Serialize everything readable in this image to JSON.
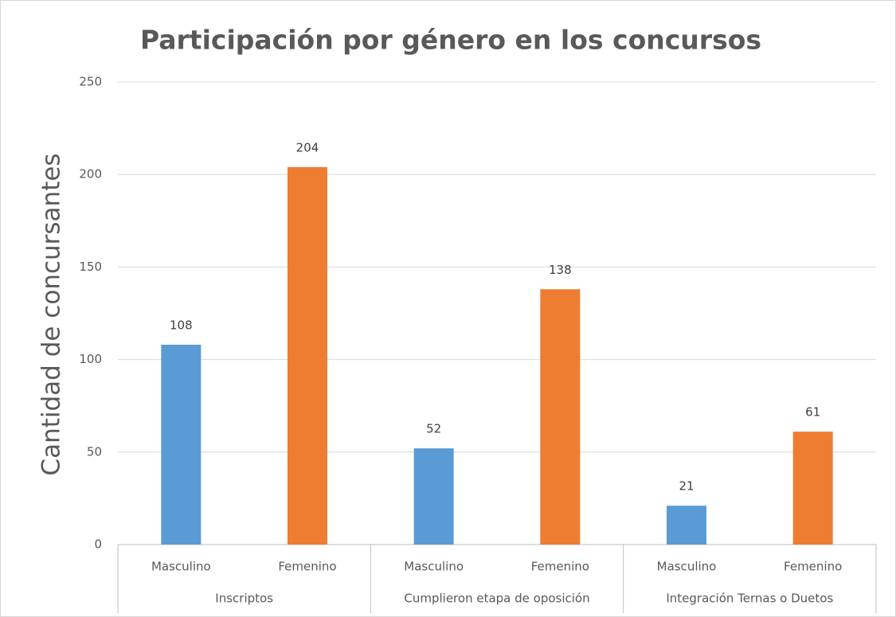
{
  "chart_data": {
    "type": "bar",
    "title": "Participación por género en los concursos",
    "y_label": "Cantidad de concursantes",
    "categories": [
      "Masculino",
      "Femenino",
      "Masculino",
      "Femenino",
      "Masculino",
      "Femenino"
    ],
    "groups": [
      "Inscriptos",
      "Cumplieron etapa de oposición",
      "Integración Ternas o Duetos"
    ],
    "values": [
      108,
      204,
      52,
      138,
      21,
      61
    ],
    "colors": [
      "#5b9bd5",
      "#ed7d31",
      "#5b9bd5",
      "#ed7d31",
      "#5b9bd5",
      "#ed7d31"
    ],
    "ylim": [
      0,
      250
    ],
    "yticks": [
      0,
      50,
      100,
      150,
      200,
      250
    ],
    "grid": true
  }
}
